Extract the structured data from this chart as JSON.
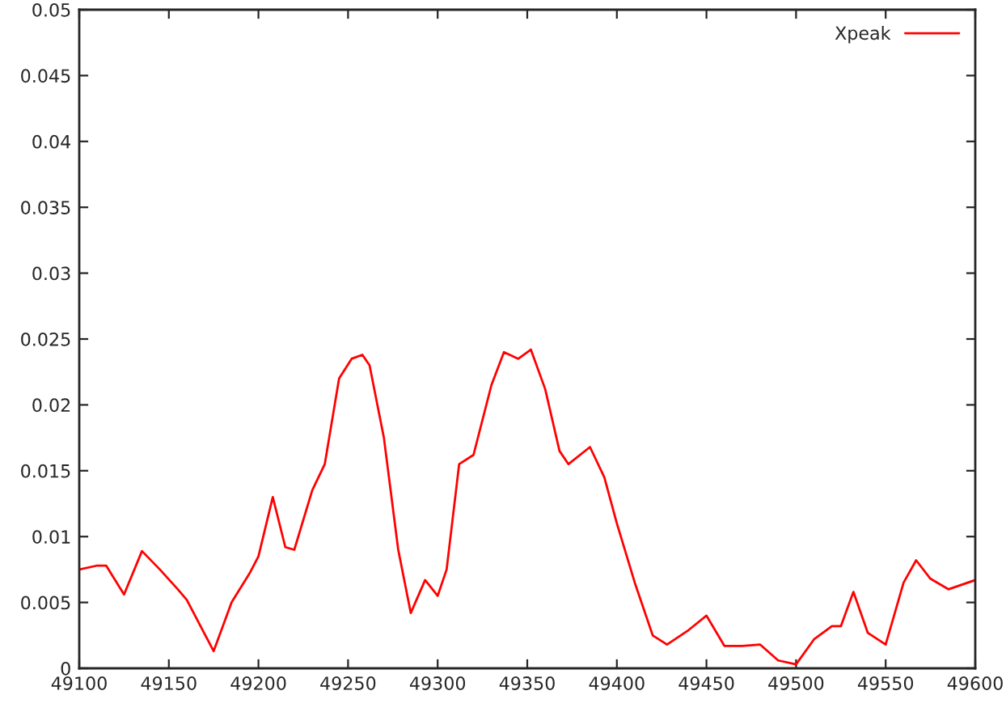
{
  "chart_data": {
    "type": "line",
    "legend": "top right",
    "grid": false,
    "xlim": [
      49100,
      49600
    ],
    "xticks": [
      49100,
      49150,
      49200,
      49250,
      49300,
      49350,
      49400,
      49450,
      49500,
      49550,
      49600
    ],
    "ylim": [
      0,
      0.05
    ],
    "yticks": [
      0,
      {
        "value": 0.005,
        "label": "0.005"
      },
      {
        "value": 0.01,
        "label": "0.01"
      },
      {
        "value": 0.015,
        "label": "0.015"
      },
      {
        "value": 0.02,
        "label": "0.02"
      },
      {
        "value": 0.025,
        "label": "0.025"
      },
      {
        "value": 0.03,
        "label": "0.03"
      },
      {
        "value": 0.035,
        "label": "0.035"
      },
      {
        "value": 0.04,
        "label": "0.04"
      },
      {
        "value": 0.045,
        "label": "0.045"
      },
      {
        "value": 0.05,
        "label": "0.05"
      }
    ],
    "series": [
      {
        "name": "Xpeak",
        "color": "#ff0000",
        "x": [
          49100,
          49110,
          49115,
          49125,
          49135,
          49145,
          49155,
          49160,
          49175,
          49185,
          49195,
          49200,
          49208,
          49215,
          49220,
          49230,
          49237,
          49245,
          49252,
          49258,
          49262,
          49270,
          49278,
          49285,
          49293,
          49300,
          49305,
          49312,
          49320,
          49330,
          49337,
          49345,
          49352,
          49360,
          49368,
          49373,
          49385,
          49393,
          49400,
          49410,
          49420,
          49428,
          49440,
          49450,
          49460,
          49470,
          49480,
          49490,
          49500,
          49510,
          49520,
          49525,
          49532,
          49540,
          49550,
          49560,
          49567,
          49575,
          49585,
          49600
        ],
        "values": [
          0.0075,
          0.0078,
          0.0078,
          0.0056,
          0.0089,
          0.0075,
          0.006,
          0.0052,
          0.0013,
          0.005,
          0.0072,
          0.0085,
          0.013,
          0.0092,
          0.009,
          0.0135,
          0.0155,
          0.022,
          0.0235,
          0.0238,
          0.023,
          0.0175,
          0.009,
          0.0042,
          0.0067,
          0.0055,
          0.0075,
          0.0155,
          0.0162,
          0.0215,
          0.024,
          0.0235,
          0.0242,
          0.0212,
          0.0165,
          0.0155,
          0.0168,
          0.0145,
          0.011,
          0.0065,
          0.0025,
          0.0018,
          0.0029,
          0.004,
          0.0017,
          0.0017,
          0.0018,
          0.0006,
          0.0003,
          0.0022,
          0.0032,
          0.0032,
          0.0058,
          0.0027,
          0.0018,
          0.0065,
          0.0082,
          0.0068,
          0.006,
          0.0067
        ]
      }
    ]
  }
}
